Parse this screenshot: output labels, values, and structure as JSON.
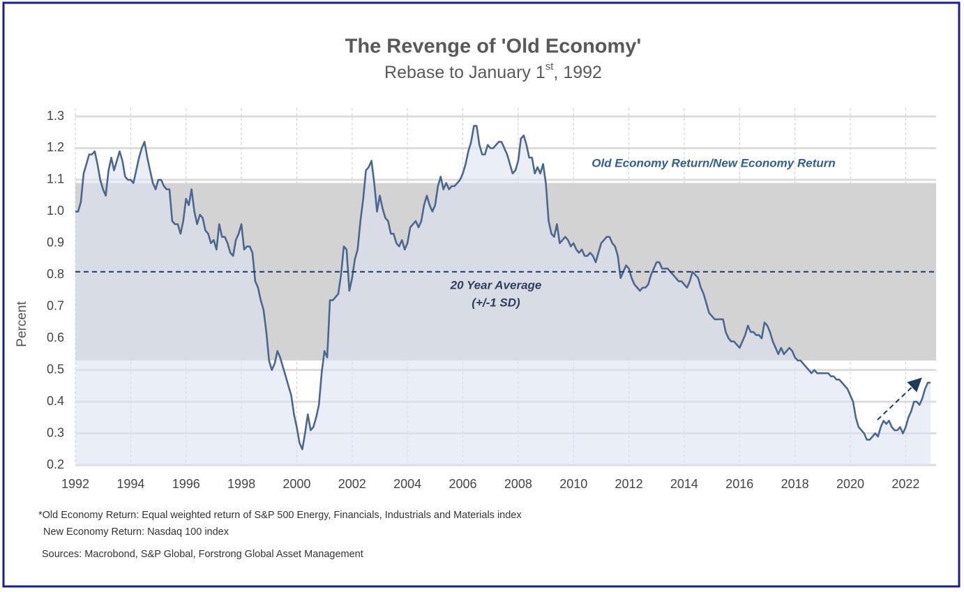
{
  "chart_data": {
    "type": "line",
    "title": "The Revenge of 'Old Economy'",
    "subtitle": [
      "Rebase to January 1",
      "st",
      ", 1992"
    ],
    "ylabel": "Percent",
    "xlim": [
      1992,
      2023.1
    ],
    "xticks": [
      1992,
      1994,
      1996,
      1998,
      2000,
      2002,
      2004,
      2006,
      2008,
      2010,
      2012,
      2014,
      2016,
      2018,
      2020,
      2022
    ],
    "ylim": [
      0.2,
      1.3
    ],
    "yticks": [
      {
        "value": 0.2,
        "label": "0.2"
      },
      {
        "value": 0.3,
        "label": "0.3"
      },
      {
        "value": 0.4,
        "label": "0.4"
      },
      {
        "value": 0.5,
        "label": "0.5"
      },
      {
        "value": 0.6,
        "label": "0.6"
      },
      {
        "value": 0.7,
        "label": "0.7"
      },
      {
        "value": 0.8,
        "label": "0.8"
      },
      {
        "value": 0.9,
        "label": "0.9"
      },
      {
        "value": 1.0,
        "label": "1.0"
      },
      {
        "value": 1.1,
        "label": "1.1"
      },
      {
        "value": 1.2,
        "label": "1.2"
      },
      {
        "value": 1.3,
        "label": "1.3"
      }
    ],
    "grid": true,
    "band": [
      0.53,
      1.09
    ],
    "band_color": "#d3d3d3",
    "average": 0.81,
    "average_color": "#1f3a5f",
    "average_label": [
      "20 Year Average",
      "(+/-1 SD)"
    ],
    "area_color": "#dce3f1",
    "x": [
      1992,
      1992.1,
      1992.2,
      1992.3,
      1992.4,
      1992.5,
      1992.6,
      1992.7,
      1992.8,
      1992.9,
      1993,
      1993.1,
      1993.2,
      1993.3,
      1993.4,
      1993.5,
      1993.6,
      1993.7,
      1993.8,
      1993.9,
      1994,
      1994.1,
      1994.2,
      1994.3,
      1994.4,
      1994.5,
      1994.6,
      1994.7,
      1994.8,
      1994.9,
      1995,
      1995.1,
      1995.2,
      1995.3,
      1995.4,
      1995.5,
      1995.6,
      1995.7,
      1995.8,
      1995.9,
      1996,
      1996.1,
      1996.2,
      1996.3,
      1996.4,
      1996.5,
      1996.6,
      1996.7,
      1996.8,
      1996.9,
      1997,
      1997.1,
      1997.2,
      1997.3,
      1997.4,
      1997.5,
      1997.6,
      1997.7,
      1997.8,
      1997.9,
      1998,
      1998.1,
      1998.2,
      1998.3,
      1998.4,
      1998.5,
      1998.6,
      1998.7,
      1998.8,
      1998.9,
      1999,
      1999.1,
      1999.2,
      1999.3,
      1999.4,
      1999.5,
      1999.6,
      1999.7,
      1999.8,
      1999.9,
      2000,
      2000.1,
      2000.2,
      2000.3,
      2000.4,
      2000.5,
      2000.6,
      2000.7,
      2000.8,
      2000.9,
      2001,
      2001.1,
      2001.2,
      2001.3,
      2001.4,
      2001.5,
      2001.6,
      2001.7,
      2001.8,
      2001.9,
      2002,
      2002.1,
      2002.2,
      2002.3,
      2002.4,
      2002.5,
      2002.6,
      2002.7,
      2002.8,
      2002.9,
      2003,
      2003.1,
      2003.2,
      2003.3,
      2003.4,
      2003.5,
      2003.6,
      2003.7,
      2003.8,
      2003.9,
      2004,
      2004.1,
      2004.2,
      2004.3,
      2004.4,
      2004.5,
      2004.6,
      2004.7,
      2004.8,
      2004.9,
      2005,
      2005.1,
      2005.2,
      2005.3,
      2005.4,
      2005.5,
      2005.6,
      2005.7,
      2005.8,
      2005.9,
      2006,
      2006.1,
      2006.2,
      2006.3,
      2006.4,
      2006.5,
      2006.6,
      2006.7,
      2006.8,
      2006.9,
      2007,
      2007.1,
      2007.2,
      2007.3,
      2007.4,
      2007.5,
      2007.6,
      2007.7,
      2007.8,
      2007.9,
      2008,
      2008.1,
      2008.2,
      2008.3,
      2008.4,
      2008.5,
      2008.6,
      2008.7,
      2008.8,
      2008.9,
      2009,
      2009.1,
      2009.2,
      2009.3,
      2009.4,
      2009.5,
      2009.6,
      2009.7,
      2009.8,
      2009.9,
      2010,
      2010.1,
      2010.2,
      2010.3,
      2010.4,
      2010.5,
      2010.6,
      2010.7,
      2010.8,
      2010.9,
      2011,
      2011.1,
      2011.2,
      2011.3,
      2011.4,
      2011.5,
      2011.6,
      2011.7,
      2011.8,
      2011.9,
      2012,
      2012.1,
      2012.2,
      2012.3,
      2012.4,
      2012.5,
      2012.6,
      2012.7,
      2012.8,
      2012.9,
      2013,
      2013.1,
      2013.2,
      2013.3,
      2013.4,
      2013.5,
      2013.6,
      2013.7,
      2013.8,
      2013.9,
      2014,
      2014.1,
      2014.2,
      2014.3,
      2014.4,
      2014.5,
      2014.6,
      2014.7,
      2014.8,
      2014.9,
      2015,
      2015.1,
      2015.2,
      2015.3,
      2015.4,
      2015.5,
      2015.6,
      2015.7,
      2015.8,
      2015.9,
      2016,
      2016.1,
      2016.2,
      2016.3,
      2016.4,
      2016.5,
      2016.6,
      2016.7,
      2016.8,
      2016.9,
      2017,
      2017.1,
      2017.2,
      2017.3,
      2017.4,
      2017.5,
      2017.6,
      2017.7,
      2017.8,
      2017.9,
      2018,
      2018.1,
      2018.2,
      2018.3,
      2018.4,
      2018.5,
      2018.6,
      2018.7,
      2018.8,
      2018.9,
      2019,
      2019.1,
      2019.2,
      2019.3,
      2019.4,
      2019.5,
      2019.6,
      2019.7,
      2019.8,
      2019.9,
      2020,
      2020.1,
      2020.2,
      2020.3,
      2020.4,
      2020.5,
      2020.6,
      2020.7,
      2020.8,
      2020.9,
      2021,
      2021.1,
      2021.2,
      2021.3,
      2021.4,
      2021.5,
      2021.6,
      2021.7,
      2021.8,
      2021.9,
      2022,
      2022.1,
      2022.2,
      2022.3,
      2022.4,
      2022.5,
      2022.6,
      2022.7,
      2022.8,
      2022.9
    ],
    "series": [
      {
        "name": "Old Economy Return/New Economy Return",
        "color": "#4a6790",
        "values": [
          1.0,
          1.0,
          1.03,
          1.12,
          1.15,
          1.18,
          1.18,
          1.19,
          1.15,
          1.1,
          1.07,
          1.05,
          1.13,
          1.17,
          1.13,
          1.16,
          1.19,
          1.16,
          1.11,
          1.1,
          1.1,
          1.09,
          1.13,
          1.17,
          1.2,
          1.22,
          1.17,
          1.13,
          1.09,
          1.07,
          1.1,
          1.1,
          1.08,
          1.07,
          1.07,
          0.97,
          0.96,
          0.96,
          0.93,
          0.97,
          1.04,
          1.02,
          1.07,
          1.0,
          0.96,
          0.99,
          0.98,
          0.94,
          0.93,
          0.9,
          0.91,
          0.88,
          0.96,
          0.92,
          0.92,
          0.9,
          0.87,
          0.86,
          0.91,
          0.93,
          0.96,
          0.88,
          0.89,
          0.89,
          0.87,
          0.78,
          0.76,
          0.72,
          0.69,
          0.62,
          0.53,
          0.5,
          0.52,
          0.56,
          0.54,
          0.51,
          0.48,
          0.45,
          0.42,
          0.36,
          0.32,
          0.27,
          0.25,
          0.3,
          0.36,
          0.31,
          0.32,
          0.35,
          0.39,
          0.49,
          0.56,
          0.54,
          0.72,
          0.72,
          0.73,
          0.74,
          0.8,
          0.89,
          0.88,
          0.75,
          0.79,
          0.85,
          0.88,
          0.97,
          1.04,
          1.13,
          1.14,
          1.16,
          1.09,
          1.0,
          1.05,
          1.01,
          0.98,
          0.97,
          0.93,
          0.93,
          0.9,
          0.89,
          0.91,
          0.88,
          0.9,
          0.95,
          0.96,
          0.97,
          0.95,
          0.97,
          1.02,
          1.05,
          1.02,
          1.0,
          1.02,
          1.08,
          1.11,
          1.07,
          1.09,
          1.07,
          1.08,
          1.08,
          1.09,
          1.1,
          1.12,
          1.15,
          1.19,
          1.22,
          1.27,
          1.27,
          1.21,
          1.18,
          1.18,
          1.21,
          1.2,
          1.2,
          1.21,
          1.22,
          1.22,
          1.2,
          1.18,
          1.15,
          1.12,
          1.13,
          1.16,
          1.23,
          1.24,
          1.21,
          1.17,
          1.17,
          1.12,
          1.14,
          1.12,
          1.15,
          1.09,
          0.97,
          0.93,
          0.92,
          0.96,
          0.9,
          0.91,
          0.92,
          0.91,
          0.89,
          0.9,
          0.88,
          0.87,
          0.88,
          0.86,
          0.86,
          0.87,
          0.86,
          0.84,
          0.87,
          0.9,
          0.91,
          0.92,
          0.92,
          0.9,
          0.89,
          0.86,
          0.79,
          0.81,
          0.83,
          0.82,
          0.79,
          0.77,
          0.76,
          0.75,
          0.76,
          0.76,
          0.77,
          0.8,
          0.82,
          0.84,
          0.84,
          0.82,
          0.82,
          0.82,
          0.81,
          0.8,
          0.79,
          0.78,
          0.78,
          0.77,
          0.76,
          0.78,
          0.81,
          0.8,
          0.79,
          0.76,
          0.74,
          0.71,
          0.68,
          0.67,
          0.66,
          0.66,
          0.66,
          0.66,
          0.62,
          0.6,
          0.59,
          0.59,
          0.58,
          0.57,
          0.59,
          0.61,
          0.64,
          0.62,
          0.62,
          0.61,
          0.61,
          0.6,
          0.65,
          0.64,
          0.62,
          0.59,
          0.57,
          0.55,
          0.57,
          0.55,
          0.56,
          0.57,
          0.56,
          0.54,
          0.53,
          0.53,
          0.52,
          0.51,
          0.5,
          0.49,
          0.5,
          0.49,
          0.49,
          0.49,
          0.49,
          0.49,
          0.48,
          0.48,
          0.47,
          0.47,
          0.46,
          0.45,
          0.44,
          0.42,
          0.4,
          0.35,
          0.32,
          0.31,
          0.3,
          0.28,
          0.28,
          0.29,
          0.3,
          0.29,
          0.32,
          0.34,
          0.33,
          0.34,
          0.32,
          0.31,
          0.31,
          0.32,
          0.3,
          0.32,
          0.35,
          0.37,
          0.4,
          0.4,
          0.39,
          0.41,
          0.44,
          0.46,
          0.46
        ]
      }
    ],
    "notes": [
      "*Old Economy Return: Equal weighted return of S&P 500 Energy, Financials, Industrials and Materials index",
      "New Economy Return: Nasdaq 100 index",
      "Sources: Macrobond, S&P Global, Forstrong Global Asset Management"
    ]
  }
}
